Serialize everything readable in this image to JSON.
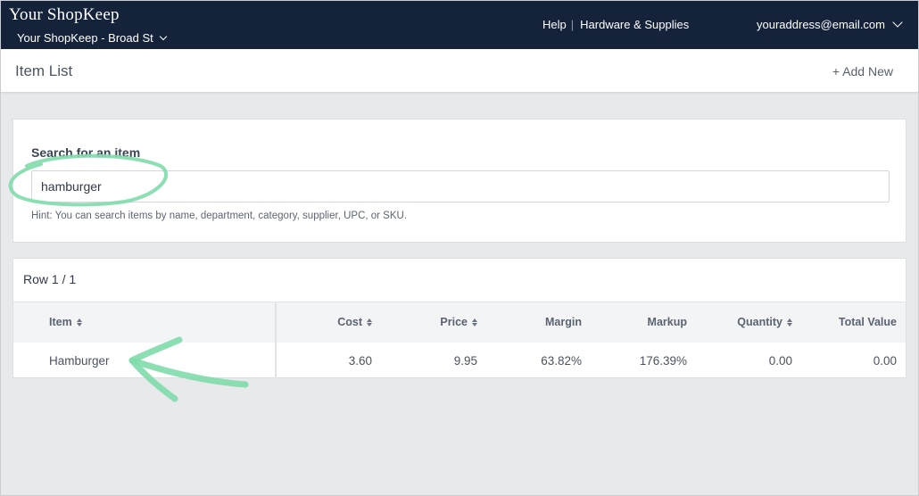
{
  "topnav": {
    "brand": "Your ShopKeep",
    "location": "Your ShopKeep - Broad St",
    "links": [
      "Help",
      "Hardware & Supplies"
    ],
    "account": "youraddress@email.com"
  },
  "header": {
    "title": "Item List",
    "add_new": "+ Add New"
  },
  "search": {
    "label": "Search for an item",
    "value": "hamburger",
    "hint": "Hint: You can search items by name, department, category, supplier, UPC, or SKU."
  },
  "results": {
    "row_count": "Row 1 / 1",
    "columns": [
      "Item",
      "Cost",
      "Price",
      "Margin",
      "Markup",
      "Quantity",
      "Total Value"
    ],
    "rows": [
      {
        "item": "Hamburger",
        "cost": "3.60",
        "price": "9.95",
        "margin": "63.82%",
        "markup": "176.39%",
        "quantity": "0.00",
        "total_value": "0.00"
      }
    ]
  },
  "colors": {
    "nav_bg": "#14233a",
    "annotation": "#7fdcab"
  }
}
